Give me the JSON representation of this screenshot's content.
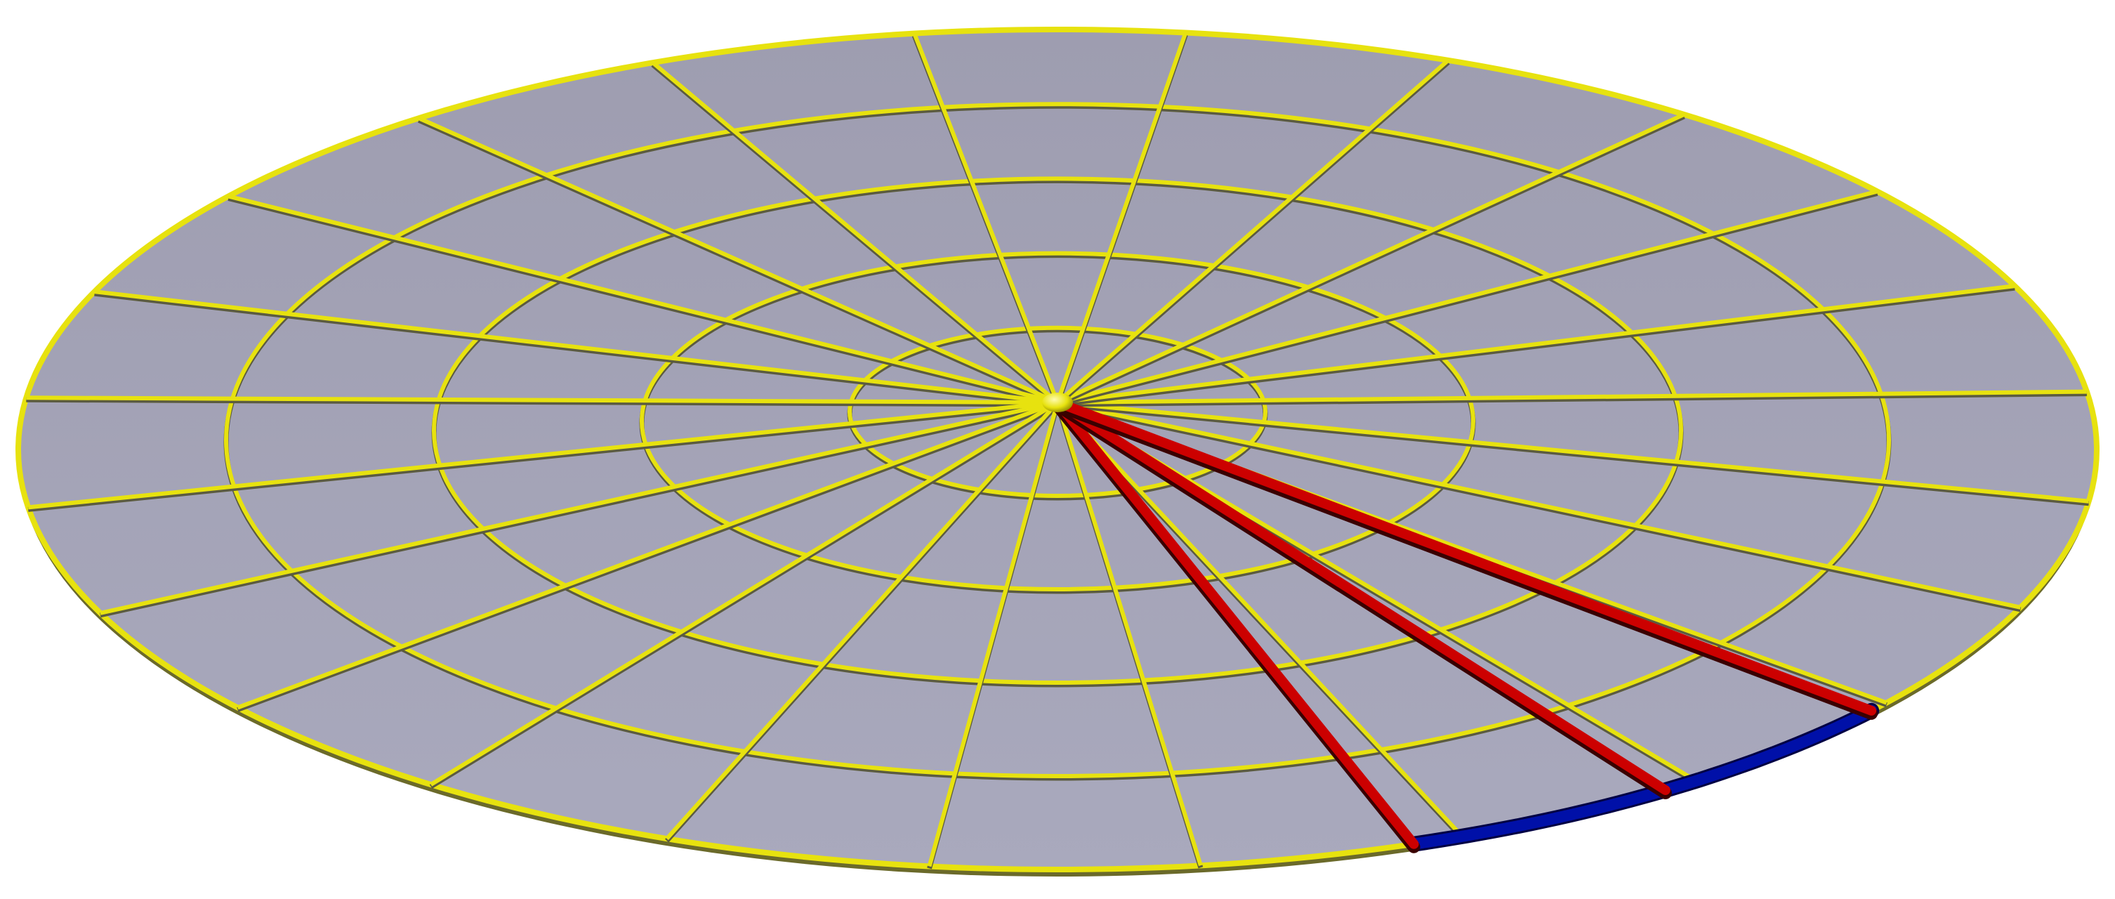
{
  "diagram": {
    "kind": "polar-grid-disk-3d",
    "rings": 5,
    "spokes": 24,
    "highlighted_spokes": 3,
    "highlighted_arc": true,
    "colors": {
      "disk_fill": "#a3a3b8",
      "grid_line": "#e7e20f",
      "grid_shadow": "#5b5b40",
      "highlight_spoke": "#cc0000",
      "highlight_arc": "#0010a8",
      "center_hub": "#e7e20f"
    }
  }
}
